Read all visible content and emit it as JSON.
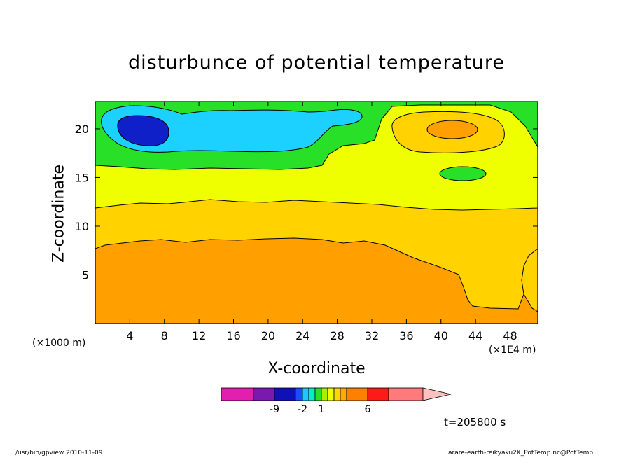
{
  "chart_data": {
    "type": "contour",
    "title": "disturbunce of potential temperature",
    "xlabel": "X-coordinate",
    "ylabel": "Z-coordinate",
    "x_unit_label": "(×1E4 m)",
    "secondary_unit_label": "(×1000 m)",
    "x_ticks": [
      "4",
      "8",
      "12",
      "16",
      "20",
      "24",
      "28",
      "32",
      "36",
      "40",
      "44",
      "48"
    ],
    "y_ticks": [
      "5",
      "10",
      "15",
      "20"
    ],
    "xlim": [
      0,
      51.2
    ],
    "ylim": [
      0,
      22.8
    ],
    "colorbar_labels": [
      "-9",
      "-2",
      "1",
      "6"
    ],
    "colorbar_colors": [
      "#e21fb0",
      "#7a19b0",
      "#1010b8",
      "#1c4cff",
      "#1cc8ff",
      "#00f0c0",
      "#28e028",
      "#a8f000",
      "#f0ff00",
      "#ffd700",
      "#ffaa00",
      "#ff8000",
      "#ff1a1a",
      "#ff7a7a",
      "#ffc0c0"
    ],
    "time_label": "t=205800 s"
  },
  "footer": {
    "left": "/usr/bin/gpview  2010-11-09",
    "right": "arare-earth-reikyaku2K_PotTemp.nc@PotTemp"
  }
}
